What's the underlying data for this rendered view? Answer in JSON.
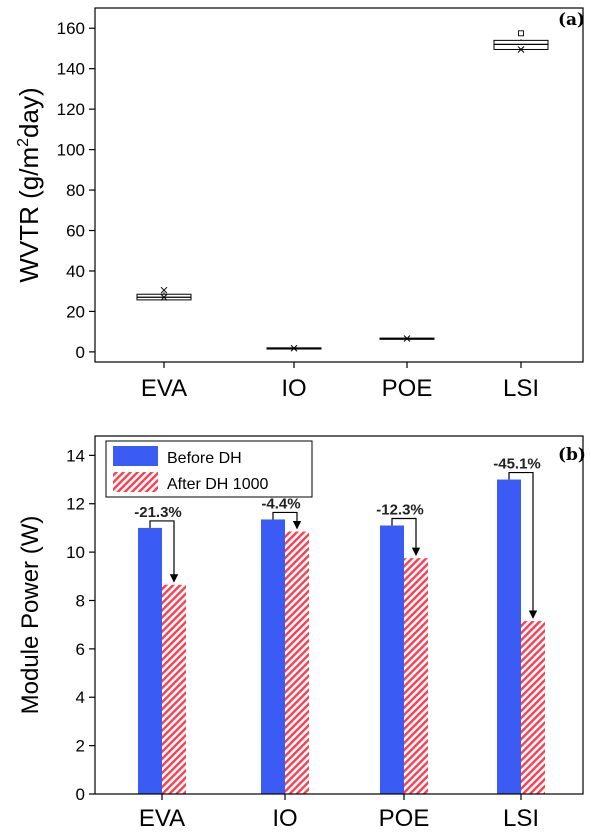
{
  "chart_data": [
    {
      "type": "box",
      "panel_label": "(a)",
      "ylabel": "WVTR (g/m²day)",
      "ylabel_main": "WVTR (g/m",
      "ylabel_sup": "2",
      "ylabel_tail": "day)",
      "categories": [
        "EVA",
        "IO",
        "POE",
        "LSI"
      ],
      "ylim": [
        -5,
        170
      ],
      "yticks": [
        "0",
        "20",
        "40",
        "60",
        "80",
        "100",
        "120",
        "140",
        "160"
      ],
      "ytick_values": [
        0,
        20,
        40,
        60,
        80,
        100,
        120,
        140,
        160
      ],
      "boxes": [
        {
          "category": "EVA",
          "q1": 25.7,
          "median": 27.0,
          "q3": 28.5,
          "min": 25.5,
          "max": 29.5,
          "mean": 27.0,
          "outliers": [
            30.5
          ]
        },
        {
          "category": "IO",
          "q1": 1.6,
          "median": 1.8,
          "q3": 2.0,
          "min": 1.5,
          "max": 2.1,
          "mean": 1.8,
          "outliers": []
        },
        {
          "category": "POE",
          "q1": 6.4,
          "median": 6.6,
          "q3": 6.8,
          "min": 6.3,
          "max": 6.9,
          "mean": 6.6,
          "outliers": []
        },
        {
          "category": "LSI",
          "q1": 149.5,
          "median": 152.0,
          "q3": 154.0,
          "min": 149.0,
          "max": 154.5,
          "mean": 149.5,
          "outliers": [
            157.5
          ]
        }
      ],
      "colors": {
        "box": "#000000"
      }
    },
    {
      "type": "bar",
      "panel_label": "(b)",
      "ylabel": "Module Power (W)",
      "categories": [
        "EVA",
        "IO",
        "POE",
        "LSI"
      ],
      "ylim": [
        0,
        14.8
      ],
      "yticks": [
        "0",
        "2",
        "4",
        "6",
        "8",
        "10",
        "12",
        "14"
      ],
      "ytick_values": [
        0,
        2,
        4,
        6,
        8,
        10,
        12,
        14
      ],
      "series": [
        {
          "name": "Before DH",
          "values": [
            11.0,
            11.35,
            11.1,
            13.0
          ],
          "color": "#3b5bf5"
        },
        {
          "name": "After DH 1000",
          "values": [
            8.65,
            10.85,
            9.75,
            7.15
          ],
          "color": "#ff3b4e"
        }
      ],
      "annotations": [
        "-21.3%",
        "-4.4%",
        "-12.3%",
        "-45.1%"
      ],
      "legend_position": "top-left"
    }
  ]
}
